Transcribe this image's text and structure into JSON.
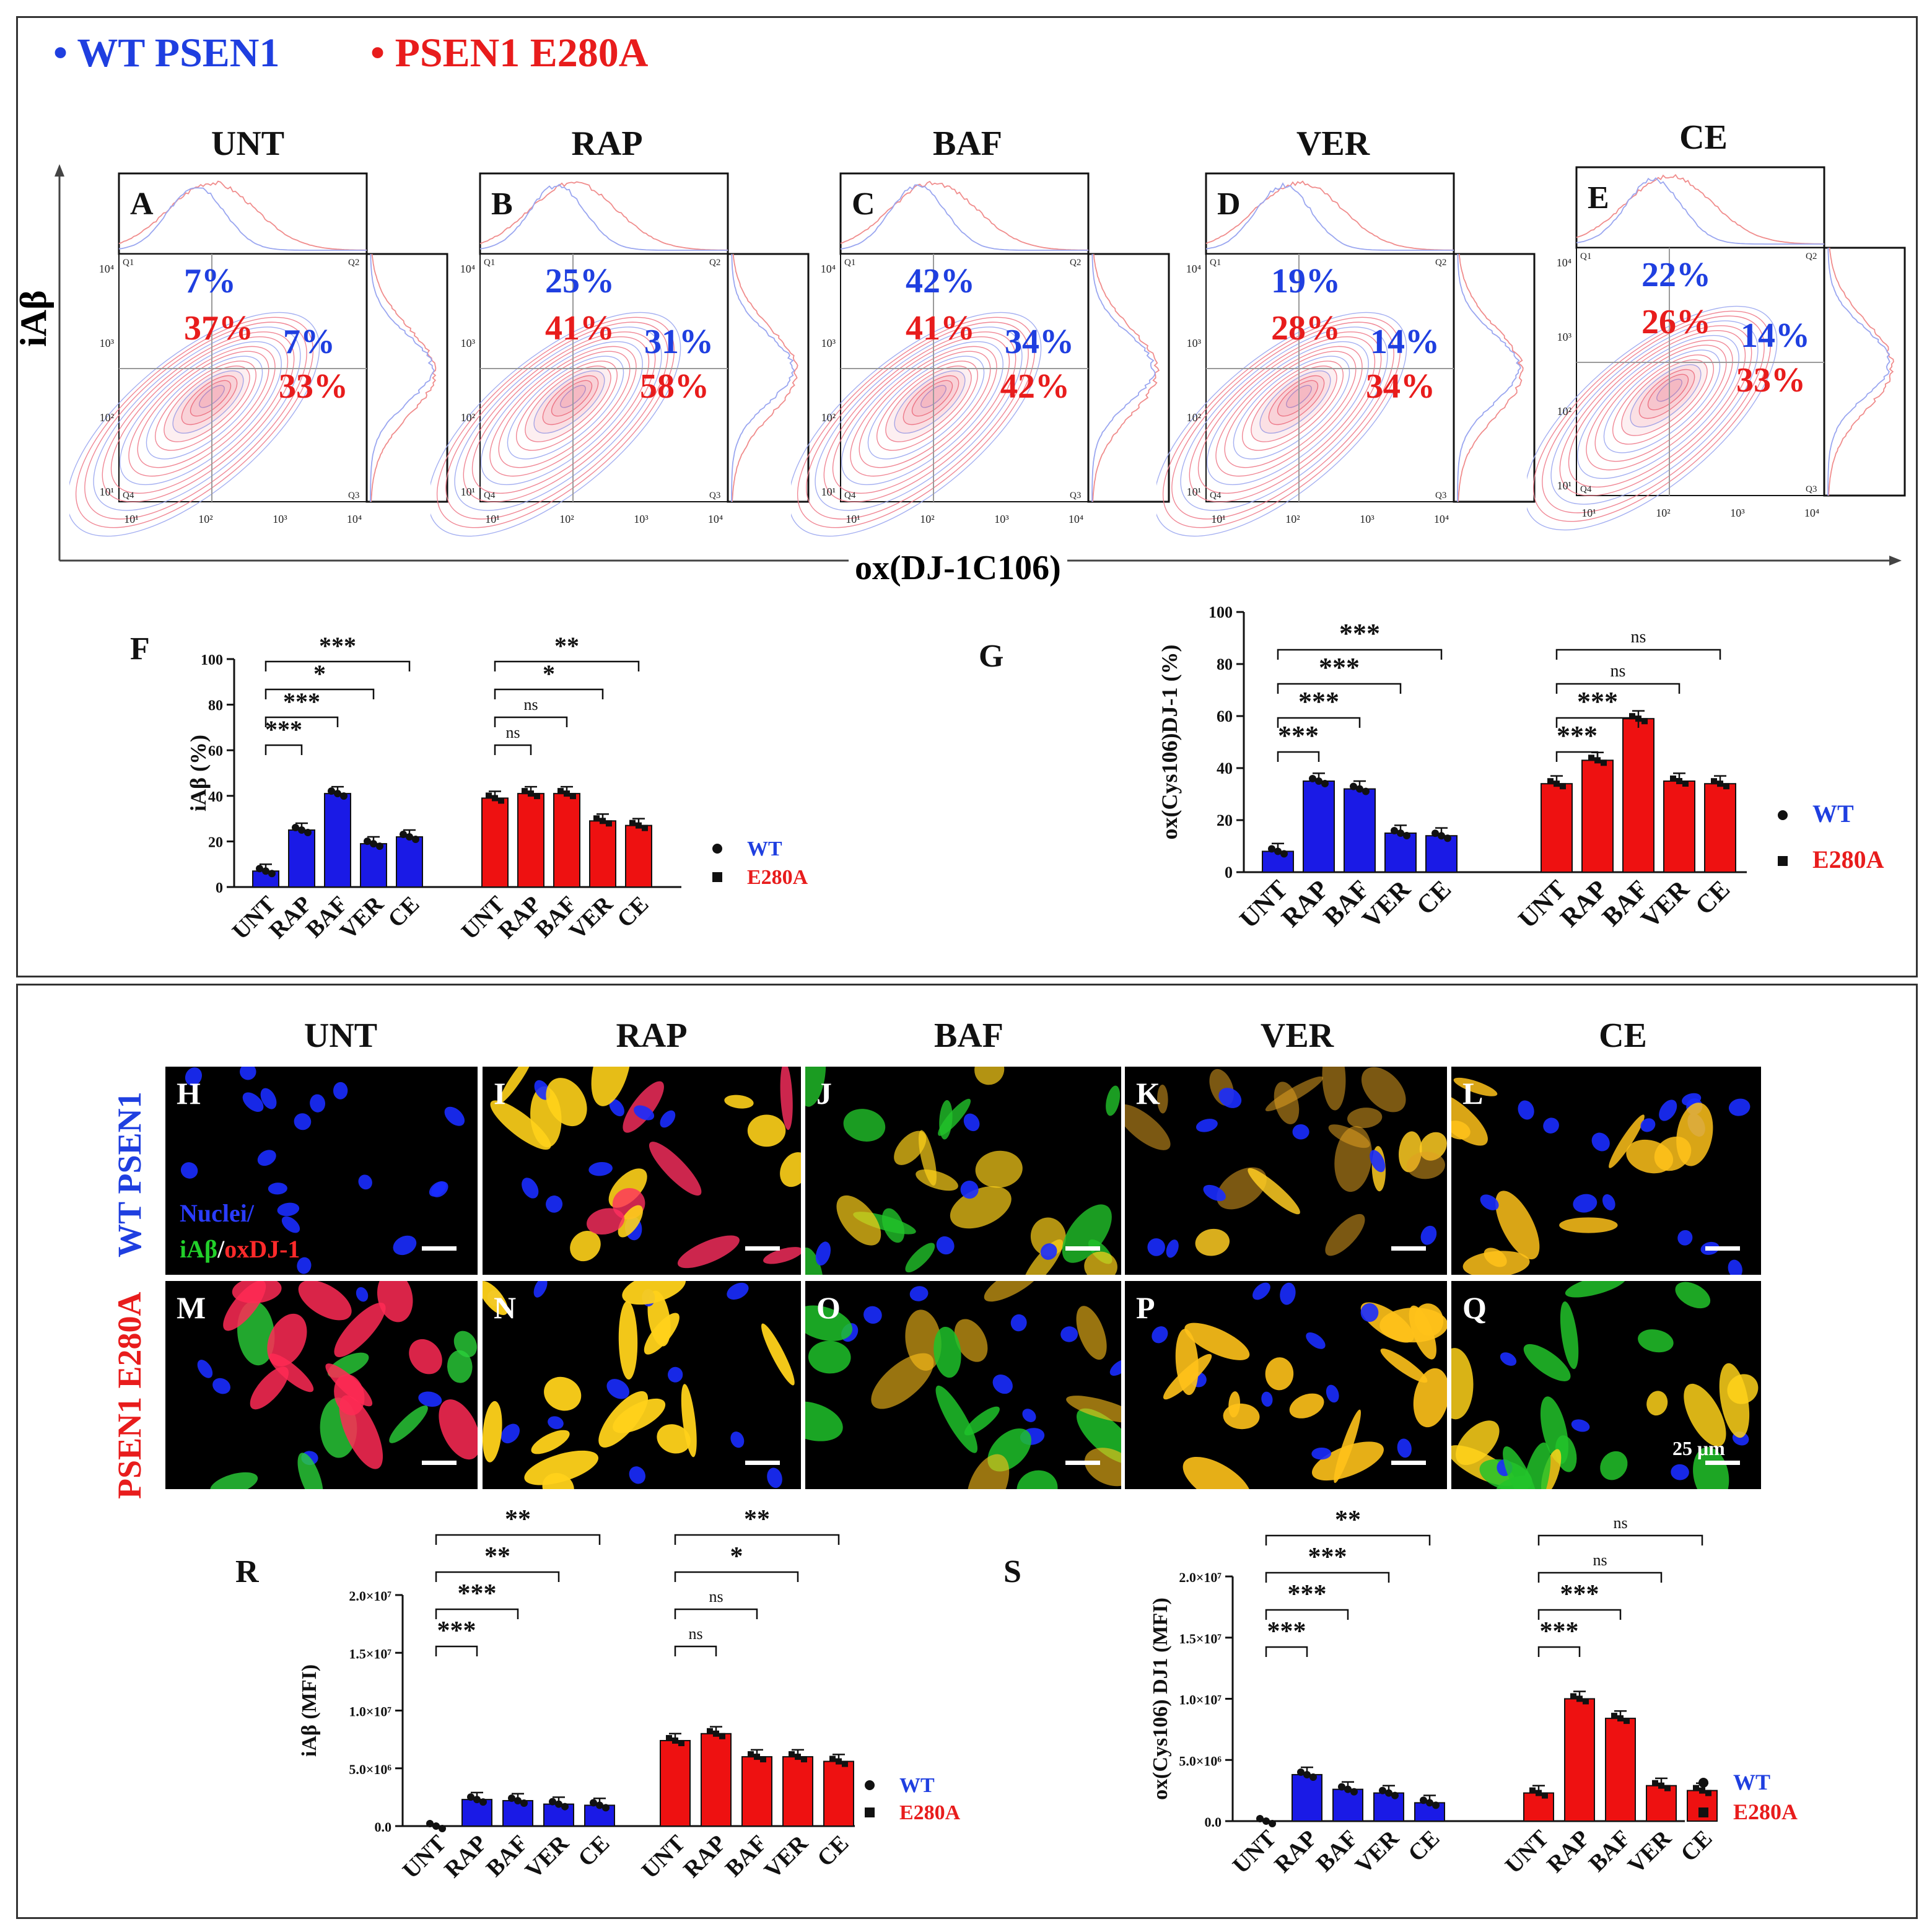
{
  "legend_top": {
    "wt": "WT PSEN1",
    "mut": "PSEN1 E280A"
  },
  "treatments": [
    "UNT",
    "RAP",
    "BAF",
    "VER",
    "CE"
  ],
  "flow_panels": [
    {
      "letter": "A",
      "title": "UNT",
      "wt_q1": "7%",
      "mut_q1": "37%",
      "wt_q2": "7%",
      "mut_q2": "33%"
    },
    {
      "letter": "B",
      "title": "RAP",
      "wt_q1": "25%",
      "mut_q1": "41%",
      "wt_q2": "31%",
      "mut_q2": "58%"
    },
    {
      "letter": "C",
      "title": "BAF",
      "wt_q1": "42%",
      "mut_q1": "41%",
      "wt_q2": "34%",
      "mut_q2": "42%"
    },
    {
      "letter": "D",
      "title": "VER",
      "wt_q1": "19%",
      "mut_q1": "28%",
      "wt_q2": "14%",
      "mut_q2": "34%"
    },
    {
      "letter": "E",
      "title": "CE",
      "wt_q1": "22%",
      "mut_q1": "26%",
      "wt_q2": "14%",
      "mut_q2": "33%"
    }
  ],
  "flow_axes": {
    "y": "iAβ",
    "x": "ox(DJ-1C106)"
  },
  "flow_ticks": [
    "10¹",
    "10²",
    "10³",
    "10⁴"
  ],
  "quadrants": [
    "Q1",
    "Q2",
    "Q3",
    "Q4"
  ],
  "micro": {
    "wt_row_label": "WT PSEN1",
    "mut_row_label": "PSEN1 E280A",
    "stain_nuclei": "Nuclei/",
    "stain_iab": "iAβ",
    "stain_sep": "/",
    "stain_ox": "oxDJ-1",
    "scale_bar": "25 μm",
    "letters_wt": [
      "H",
      "I",
      "J",
      "K",
      "L"
    ],
    "letters_mut": [
      "M",
      "N",
      "O",
      "P",
      "Q"
    ]
  },
  "legend_small": {
    "wt": "WT",
    "mut": "E280A"
  },
  "colors": {
    "wt": "#1f3fe0",
    "mut": "#e81c1c",
    "wt_bar": "#1a1ae6",
    "mut_bar": "#ee1111"
  },
  "chart_data": [
    {
      "panel": "F",
      "type": "bar",
      "ylabel": "iAβ (%)",
      "categories": [
        "UNT",
        "RAP",
        "BAF",
        "VER",
        "CE"
      ],
      "series": [
        {
          "name": "WT",
          "values": [
            7,
            25,
            41,
            19,
            22
          ]
        },
        {
          "name": "E280A",
          "values": [
            39,
            41,
            41,
            29,
            27
          ]
        }
      ],
      "ylim": [
        0,
        100
      ],
      "ticks": [
        "0",
        "20",
        "40",
        "60",
        "80",
        "100"
      ],
      "sig_wt": [
        "***",
        "***",
        "*",
        "***"
      ],
      "sig_mut": [
        "ns",
        "ns",
        "*",
        "**"
      ]
    },
    {
      "panel": "G",
      "type": "bar",
      "ylabel": "ox(Cys106)DJ-1 (%)",
      "categories": [
        "UNT",
        "RAP",
        "BAF",
        "VER",
        "CE"
      ],
      "series": [
        {
          "name": "WT",
          "values": [
            8,
            35,
            32,
            15,
            14
          ]
        },
        {
          "name": "E280A",
          "values": [
            34,
            43,
            59,
            35,
            34
          ]
        }
      ],
      "ylim": [
        0,
        100
      ],
      "ticks": [
        "0",
        "20",
        "40",
        "60",
        "80",
        "100"
      ],
      "sig_wt": [
        "***",
        "***",
        "***",
        "***"
      ],
      "sig_mut": [
        "***",
        "***",
        "ns",
        "ns"
      ]
    },
    {
      "panel": "R",
      "type": "bar",
      "ylabel": "iAβ (MFI)",
      "categories": [
        "UNT",
        "RAP",
        "BAF",
        "VER",
        "CE"
      ],
      "series": [
        {
          "name": "WT",
          "values": [
            0,
            2300000,
            2200000,
            1900000,
            1800000
          ]
        },
        {
          "name": "E280A",
          "values": [
            7400000,
            8000000,
            6000000,
            6000000,
            5600000
          ]
        }
      ],
      "ylim": [
        0,
        20000000
      ],
      "ticks": [
        "0.0",
        "5.0×10⁶",
        "1.0×10⁷",
        "1.5×10⁷",
        "2.0×10⁷"
      ],
      "sig_wt": [
        "***",
        "***",
        "**",
        "**"
      ],
      "sig_mut": [
        "ns",
        "ns",
        "*",
        "**"
      ]
    },
    {
      "panel": "S",
      "type": "bar",
      "ylabel": "ox(Cys106) DJ1 (MFI)",
      "categories": [
        "UNT",
        "RAP",
        "BAF",
        "VER",
        "CE"
      ],
      "series": [
        {
          "name": "WT",
          "values": [
            0,
            3800000,
            2600000,
            2300000,
            1500000
          ]
        },
        {
          "name": "E280A",
          "values": [
            2300000,
            10000000,
            8400000,
            2900000,
            2500000
          ]
        }
      ],
      "ylim": [
        0,
        20000000
      ],
      "ticks": [
        "0.0",
        "5.0×10⁶",
        "1.0×10⁷",
        "1.5×10⁷",
        "2.0×10⁷"
      ],
      "sig_wt": [
        "***",
        "***",
        "***",
        "**"
      ],
      "sig_mut": [
        "***",
        "***",
        "ns",
        "ns"
      ]
    }
  ]
}
